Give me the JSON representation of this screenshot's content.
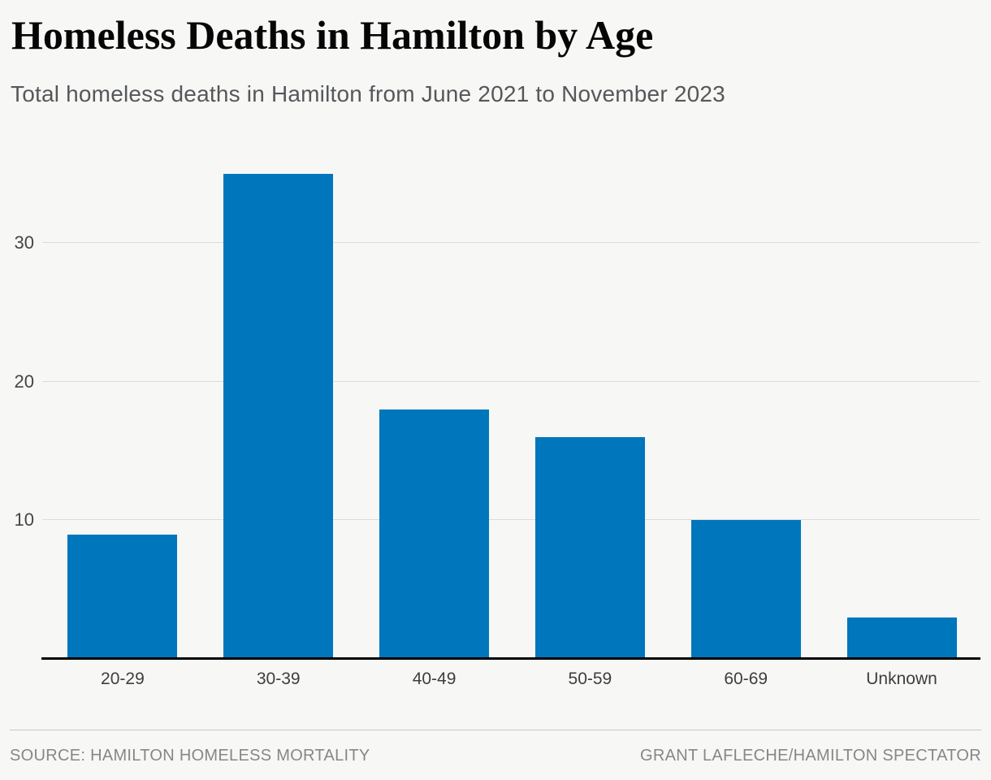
{
  "header": {
    "title": "Homeless Deaths in Hamilton by Age",
    "subtitle": "Total homeless deaths in Hamilton from June 2021 to November 2023"
  },
  "chart_data": {
    "type": "bar",
    "title": "Homeless Deaths in Hamilton by Age",
    "subtitle": "Total homeless deaths in Hamilton from June 2021 to November 2023",
    "categories": [
      "20-29",
      "30-39",
      "40-49",
      "50-59",
      "60-69",
      "Unknown"
    ],
    "values": [
      9,
      35,
      18,
      16,
      10,
      3
    ],
    "xlabel": "",
    "ylabel": "",
    "yticks": [
      10,
      20,
      30
    ],
    "ylim": [
      0,
      37
    ],
    "grid": "horizontal",
    "legend": "none",
    "bar_color": "#0076bc"
  },
  "footer": {
    "source": "SOURCE: HAMILTON HOMELESS MORTALITY",
    "credit": "GRANT LAFLECHE/HAMILTON SPECTATOR"
  },
  "colors": {
    "background": "#f7f7f6",
    "bar": "#0076bc",
    "gridline": "#dcdcdc",
    "axis": "#000000",
    "title_text": "#060606",
    "subtitle_text": "#55585a",
    "tick_text": "#454545",
    "footer_text": "#868789"
  }
}
